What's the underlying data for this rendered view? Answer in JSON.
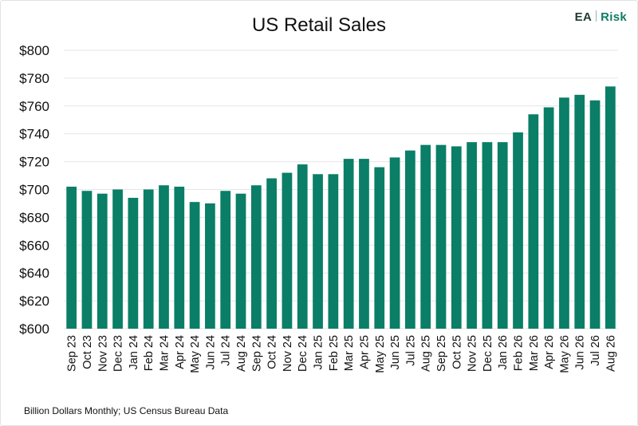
{
  "logo": {
    "left": "EA",
    "right": "Risk"
  },
  "footnote": "Billion Dollars Monthly; US Census Bureau Data",
  "chart_data": {
    "type": "bar",
    "title": "US Retail Sales",
    "xlabel": "",
    "ylabel": "",
    "ylim": [
      600,
      800
    ],
    "yticks": [
      600,
      620,
      640,
      660,
      680,
      700,
      720,
      740,
      760,
      780,
      800
    ],
    "ytick_labels": [
      "$600",
      "$620",
      "$640",
      "$660",
      "$680",
      "$700",
      "$720",
      "$740",
      "$760",
      "$780",
      "$800"
    ],
    "grid": true,
    "legend": "none",
    "color": "#0a7e67",
    "categories": [
      "Sep 23",
      "Oct 23",
      "Nov 23",
      "Dec 23",
      "Jan 24",
      "Feb 24",
      "Mar 24",
      "Apr 24",
      "May 24",
      "Jun 24",
      "Jul 24",
      "Aug 24",
      "Sep 24",
      "Oct 24",
      "Nov 24",
      "Dec 24",
      "Jan 25",
      "Feb 25",
      "Mar 25",
      "Apr 25",
      "May 25",
      "Jun 25",
      "Jul 25",
      "Aug 25",
      "Sep 25",
      "Oct 25",
      "Nov 25",
      "Dec 25",
      "Jan 26",
      "Feb 26",
      "Mar 26",
      "Apr 26",
      "May 26",
      "Jun 26",
      "Jul 26",
      "Aug 26"
    ],
    "values": [
      702,
      699,
      697,
      700,
      694,
      700,
      703,
      702,
      691,
      690,
      699,
      697,
      703,
      708,
      712,
      718,
      711,
      711,
      722,
      722,
      716,
      723,
      728,
      732,
      732,
      731,
      734,
      734,
      734,
      741,
      754,
      759,
      766,
      768,
      764,
      774
    ]
  }
}
